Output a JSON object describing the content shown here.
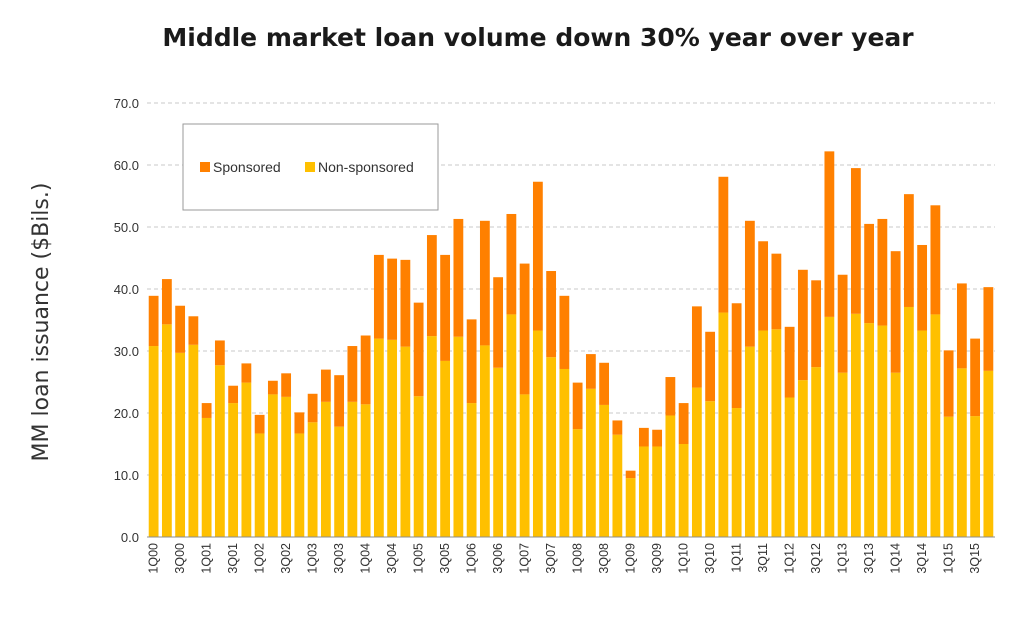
{
  "chart_data": {
    "type": "bar",
    "stacked": true,
    "title": "Middle market loan volume down 30% year over year",
    "ylabel": "MM loan issuance ($Bils.)",
    "xlabel": "",
    "ylim": [
      0,
      70
    ],
    "yticks": [
      "0.0",
      "10.0",
      "20.0",
      "30.0",
      "40.0",
      "50.0",
      "60.0",
      "70.0"
    ],
    "grid": "horizontal dashed",
    "legend_position": "top-left",
    "categories": [
      "1Q00",
      "2Q00",
      "3Q00",
      "4Q00",
      "1Q01",
      "2Q01",
      "3Q01",
      "4Q01",
      "1Q02",
      "2Q02",
      "3Q02",
      "4Q02",
      "1Q03",
      "2Q03",
      "3Q03",
      "4Q03",
      "1Q04",
      "2Q04",
      "3Q04",
      "4Q04",
      "1Q05",
      "2Q05",
      "3Q05",
      "4Q05",
      "1Q06",
      "2Q06",
      "3Q06",
      "4Q06",
      "1Q07",
      "2Q07",
      "3Q07",
      "4Q07",
      "1Q08",
      "2Q08",
      "3Q08",
      "4Q08",
      "1Q09",
      "2Q09",
      "3Q09",
      "4Q09",
      "1Q10",
      "2Q10",
      "3Q10",
      "4Q10",
      "1Q11",
      "2Q11",
      "3Q11",
      "4Q11",
      "1Q12",
      "2Q12",
      "3Q12",
      "4Q12",
      "1Q13",
      "2Q13",
      "3Q13",
      "4Q13",
      "1Q14",
      "2Q14",
      "3Q14",
      "4Q14",
      "1Q15",
      "2Q15",
      "3Q15",
      "4Q15"
    ],
    "tick_labels": [
      "1Q00",
      "",
      "3Q00",
      "",
      "1Q01",
      "",
      "3Q01",
      "",
      "1Q02",
      "",
      "3Q02",
      "",
      "1Q03",
      "",
      "3Q03",
      "",
      "1Q04",
      "",
      "3Q04",
      "",
      "1Q05",
      "",
      "3Q05",
      "",
      "1Q06",
      "",
      "3Q06",
      "",
      "1Q07",
      "",
      "3Q07",
      "",
      "1Q08",
      "",
      "3Q08",
      "",
      "1Q09",
      "",
      "3Q09",
      "",
      "1Q10",
      "",
      "3Q10",
      "",
      "1Q11",
      "",
      "3Q11",
      "",
      "1Q12",
      "",
      "3Q12",
      "",
      "1Q13",
      "",
      "3Q13",
      "",
      "1Q14",
      "",
      "3Q14",
      "",
      "1Q15",
      "",
      "3Q15",
      ""
    ],
    "series": [
      {
        "name": "Non-sponsored",
        "color": "#FFC000",
        "values": [
          30.8,
          34.3,
          29.7,
          31.0,
          19.2,
          27.7,
          21.6,
          24.9,
          16.7,
          23.0,
          22.6,
          16.7,
          18.5,
          21.8,
          17.8,
          21.8,
          21.4,
          32.0,
          31.8,
          30.7,
          22.7,
          32.4,
          28.4,
          32.3,
          21.6,
          30.9,
          27.3,
          35.9,
          23.0,
          33.3,
          29.0,
          27.1,
          17.4,
          23.9,
          21.3,
          16.5,
          9.5,
          14.6,
          14.6,
          19.6,
          15.0,
          24.1,
          21.9,
          36.2,
          20.8,
          30.7,
          33.3,
          33.5,
          22.5,
          25.3,
          27.4,
          35.5,
          26.5,
          36.0,
          34.5,
          34.1,
          26.5,
          37.1,
          33.3,
          35.9,
          19.4,
          27.2,
          19.5,
          26.8
        ]
      },
      {
        "name": "Sponsored",
        "color": "#FF8000",
        "values": [
          8.1,
          7.3,
          7.6,
          4.6,
          2.4,
          4.0,
          2.8,
          3.1,
          3.0,
          2.2,
          3.8,
          3.4,
          4.6,
          5.2,
          8.3,
          9.0,
          11.1,
          13.5,
          13.1,
          14.0,
          15.1,
          16.3,
          17.1,
          19.0,
          13.5,
          20.1,
          14.6,
          16.2,
          21.1,
          24.0,
          13.9,
          11.8,
          7.5,
          5.6,
          6.8,
          2.3,
          1.2,
          3.0,
          2.7,
          6.2,
          6.6,
          13.1,
          11.2,
          21.9,
          16.9,
          20.3,
          14.4,
          12.2,
          11.4,
          17.8,
          14.0,
          26.7,
          15.8,
          23.5,
          16.0,
          17.2,
          19.6,
          18.2,
          13.8,
          17.6,
          10.7,
          13.7,
          12.5,
          13.5
        ]
      }
    ]
  }
}
